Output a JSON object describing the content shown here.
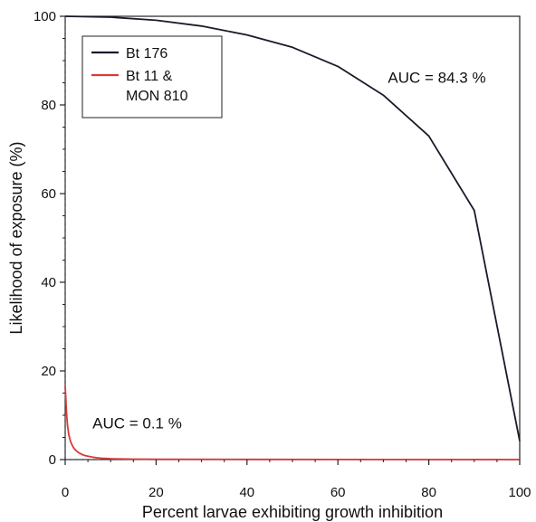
{
  "chart_data": {
    "type": "line",
    "xlabel": "Percent larvae exhibiting growth inhibition",
    "ylabel": "Likelihood of exposure (%)",
    "xlim": [
      0,
      100
    ],
    "ylim": [
      0,
      100
    ],
    "x_ticks": [
      0,
      20,
      40,
      60,
      80,
      100
    ],
    "y_ticks": [
      0,
      20,
      40,
      60,
      80,
      100
    ],
    "legend_position": "top-left",
    "series": [
      {
        "name": "Bt 176",
        "color": "#1a1a2a",
        "x": [
          0,
          10,
          20,
          30,
          40,
          50,
          60,
          70,
          80,
          90,
          100
        ],
        "y": [
          100,
          99.8,
          99.1,
          97.8,
          95.8,
          93.0,
          88.7,
          82.2,
          73.0,
          56.2,
          4.2
        ]
      },
      {
        "name_lines": [
          "Bt 11 &",
          "MON 810"
        ],
        "color": "#d93a3a",
        "x": [
          0,
          0.15,
          0.3,
          0.5,
          0.8,
          1.2,
          1.7,
          2.3,
          3.0,
          4.0,
          5.0,
          6.0,
          7.0,
          8.0,
          10.0,
          15.0,
          20.0,
          40.0,
          60.0,
          80.0,
          100.0
        ],
        "y": [
          16.5,
          13.5,
          10.5,
          7.8,
          5.6,
          4.0,
          2.9,
          2.1,
          1.5,
          1.0,
          0.75,
          0.55,
          0.4,
          0.3,
          0.2,
          0.1,
          0.07,
          0.04,
          0.02,
          0.01,
          0.0
        ]
      }
    ],
    "annotations": [
      {
        "text": "AUC = 84.3 %",
        "x": 71,
        "y": 85
      },
      {
        "text": "AUC = 0.1 %",
        "x": 6,
        "y": 7
      }
    ]
  }
}
